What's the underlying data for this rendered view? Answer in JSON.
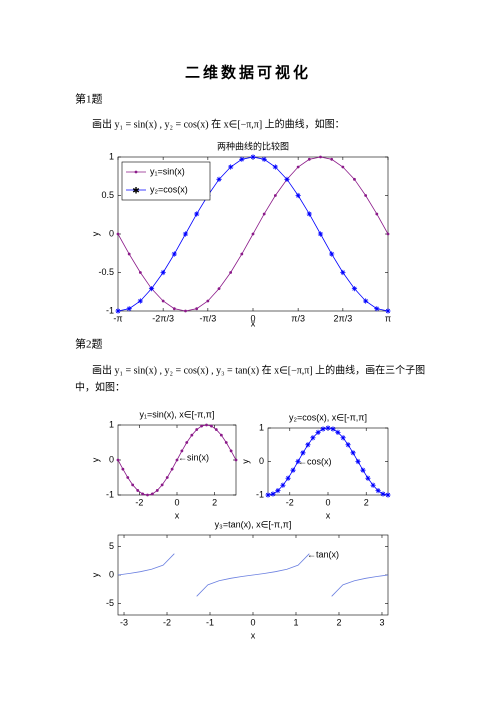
{
  "document": {
    "title": "二维数据可视化",
    "section1": "第1题",
    "para1": "画出 y₁ = sin(x) , y₂ = cos(x) 在 x∈[−π,π] 上的曲线，如图：",
    "section2": "第2题",
    "para2_line1": "画出 y₁ = sin(x) , y₂ = cos(x) , y₃ = tan(x) 在 x∈[−π,π] 上的曲线，画在三个子图",
    "para2_line2": "中，如图："
  },
  "chart_data": [
    {
      "type": "line",
      "title": "两种曲线的比较图",
      "xlabel": "x",
      "ylabel": "y",
      "legend": "upper left",
      "x": [
        -3.14,
        -2.88,
        -2.62,
        -2.36,
        -2.09,
        -1.83,
        -1.57,
        -1.31,
        -1.05,
        -0.79,
        -0.52,
        -0.26,
        0,
        0.26,
        0.52,
        0.79,
        1.05,
        1.31,
        1.57,
        1.83,
        2.09,
        2.36,
        2.62,
        2.88,
        3.14
      ],
      "series": [
        {
          "name": "y₁=sin(x)",
          "color": "#8b1a89",
          "marker": "dot",
          "values": [
            0,
            -0.26,
            -0.5,
            -0.71,
            -0.87,
            -0.97,
            -1,
            -0.97,
            -0.87,
            -0.71,
            -0.5,
            -0.26,
            0,
            0.26,
            0.5,
            0.71,
            0.87,
            0.97,
            1,
            0.97,
            0.87,
            0.71,
            0.5,
            0.26,
            0
          ]
        },
        {
          "name": "y₂=cos(x)",
          "color": "#0000ff",
          "marker": "star",
          "values": [
            -1,
            -0.97,
            -0.87,
            -0.71,
            -0.5,
            -0.26,
            0,
            0.26,
            0.5,
            0.71,
            0.87,
            0.97,
            1,
            0.97,
            0.87,
            0.71,
            0.5,
            0.26,
            0,
            -0.26,
            -0.5,
            -0.71,
            -0.87,
            -0.97,
            -1
          ]
        }
      ],
      "xlim": [
        -3.14,
        3.14
      ],
      "xticks": [
        {
          "value": -3.14,
          "label": "-π"
        },
        {
          "value": -2.09,
          "label": "-2π/3"
        },
        {
          "value": -1.05,
          "label": "-π/3"
        },
        0,
        {
          "value": 1.05,
          "label": "π/3"
        },
        {
          "value": 2.09,
          "label": "2π/3"
        },
        {
          "value": 3.14,
          "label": "π"
        }
      ],
      "ylim": [
        -1,
        1
      ],
      "yticks": [
        -1,
        -0.5,
        0,
        0.5,
        1
      ]
    },
    {
      "type": "line",
      "title": "y₁=sin(x),  x∈[-π,π]",
      "xlabel": "x",
      "ylabel": "y",
      "annotation": "←sin(x)",
      "color": "#8b1a89",
      "marker": "dot",
      "x": [
        -3.14,
        -2.88,
        -2.62,
        -2.36,
        -2.09,
        -1.83,
        -1.57,
        -1.31,
        -1.05,
        -0.79,
        -0.52,
        -0.26,
        0,
        0.26,
        0.52,
        0.79,
        1.05,
        1.31,
        1.57,
        1.83,
        2.09,
        2.36,
        2.62,
        2.88,
        3.14
      ],
      "values": [
        0,
        -0.26,
        -0.5,
        -0.71,
        -0.87,
        -0.97,
        -1,
        -0.97,
        -0.87,
        -0.71,
        -0.5,
        -0.26,
        0,
        0.26,
        0.5,
        0.71,
        0.87,
        0.97,
        1,
        0.97,
        0.87,
        0.71,
        0.5,
        0.26,
        0
      ],
      "xlim": [
        -3.14,
        3.14
      ],
      "xticks": [
        -2,
        0,
        2
      ],
      "ylim": [
        -1,
        1
      ],
      "yticks": [
        -1,
        0,
        1
      ]
    },
    {
      "type": "line",
      "title": "y₂=cos(x),  x∈[-π,π]",
      "xlabel": "x",
      "ylabel": "y",
      "annotation": "←cos(x)",
      "color": "#0000ff",
      "marker": "star",
      "x": [
        -3.14,
        -2.88,
        -2.62,
        -2.36,
        -2.09,
        -1.83,
        -1.57,
        -1.31,
        -1.05,
        -0.79,
        -0.52,
        -0.26,
        0,
        0.26,
        0.52,
        0.79,
        1.05,
        1.31,
        1.57,
        1.83,
        2.09,
        2.36,
        2.62,
        2.88,
        3.14
      ],
      "values": [
        -1,
        -0.97,
        -0.87,
        -0.71,
        -0.5,
        -0.26,
        0,
        0.26,
        0.5,
        0.71,
        0.87,
        0.97,
        1,
        0.97,
        0.87,
        0.71,
        0.5,
        0.26,
        0,
        -0.26,
        -0.5,
        -0.71,
        -0.87,
        -0.97,
        -1
      ],
      "xlim": [
        -3.14,
        3.14
      ],
      "xticks": [
        -2,
        0,
        2
      ],
      "ylim": [
        -1,
        1
      ],
      "yticks": [
        -1,
        0,
        1
      ]
    },
    {
      "type": "line",
      "title": "y₃=tan(x),  x∈[-π,π]",
      "xlabel": "x",
      "ylabel": "y",
      "annotation": "←tan(x)",
      "color": "#6a7fe0",
      "x": [
        -3.14,
        -2.88,
        -2.62,
        -2.36,
        -2.09,
        -1.83,
        -1.57,
        -1.31,
        -1.05,
        -0.79,
        -0.52,
        -0.26,
        0,
        0.26,
        0.52,
        0.79,
        1.05,
        1.31,
        1.57,
        1.83,
        2.09,
        2.36,
        2.62,
        2.88,
        3.14
      ],
      "values": [
        0,
        0.27,
        0.58,
        1,
        1.73,
        3.73,
        null,
        -3.73,
        -1.73,
        -1,
        -0.58,
        -0.27,
        0,
        0.27,
        0.58,
        1,
        1.73,
        3.73,
        null,
        -3.73,
        -1.73,
        -1,
        -0.58,
        -0.27,
        0
      ],
      "xlim": [
        -3.14,
        3.14
      ],
      "xticks": [
        -3,
        -2,
        -1,
        0,
        1,
        2,
        3
      ],
      "ylim": [
        -7,
        7
      ],
      "yticks": [
        -5,
        0,
        5
      ]
    }
  ]
}
